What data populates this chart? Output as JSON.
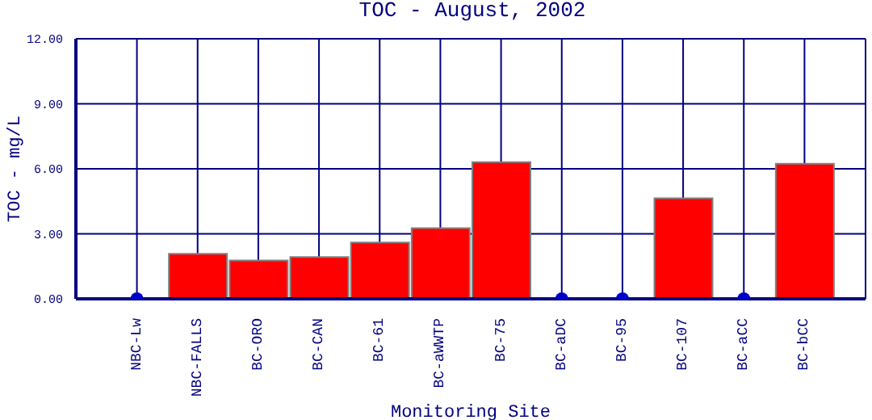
{
  "chart_data": {
    "type": "bar",
    "title": "TOC - August, 2002",
    "xlabel": "Monitoring Site",
    "ylabel": "TOC - mg/L",
    "categories": [
      "NBC-Lw",
      "NBC-FALLS",
      "BC-ORO",
      "BC-CAN",
      "BC-61",
      "BC-aWWTP",
      "BC-75",
      "BC-aDC",
      "BC-95",
      "BC-107",
      "BC-aCC",
      "BC-bCC"
    ],
    "series": [
      {
        "color": "#ff0000",
        "values": [
          null,
          2.08,
          1.77,
          1.93,
          2.6,
          3.26,
          6.31,
          null,
          null,
          4.64,
          null,
          6.23
        ]
      },
      {
        "type": "scatter",
        "color": "#0000cc",
        "marker": "circle",
        "x": [
          "NBC-Lw",
          "BC-aDC",
          "BC-95",
          "BC-aCC"
        ],
        "values": [
          0,
          0,
          0,
          0
        ]
      }
    ],
    "ylim": [
      0,
      12
    ],
    "yticks": [
      {
        "value": 0,
        "label": "0.00"
      },
      {
        "value": 3,
        "label": "3.00"
      },
      {
        "value": 6,
        "label": "6.00"
      },
      {
        "value": 9,
        "label": "9.00"
      },
      {
        "value": 12,
        "label": "12.00"
      }
    ],
    "grid": true,
    "legend": false
  }
}
